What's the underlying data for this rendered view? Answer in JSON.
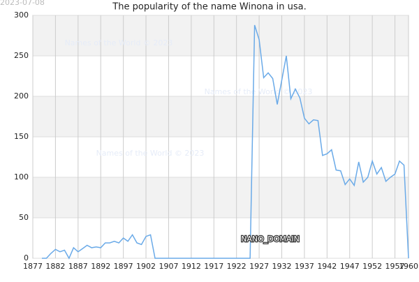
{
  "chart_data": {
    "type": "line",
    "title": "The popularity of the name Winona in usa.",
    "date_label": "2023-07-08",
    "watermarks": [
      "Names of the World © 2023",
      "Names of the World © 2023",
      "Names of the World © 2023"
    ],
    "annotation": "NANO_DOMAIN",
    "x": [
      1879,
      1880,
      1881,
      1882,
      1883,
      1884,
      1885,
      1886,
      1887,
      1888,
      1889,
      1890,
      1891,
      1892,
      1893,
      1894,
      1895,
      1896,
      1897,
      1898,
      1899,
      1900,
      1901,
      1902,
      1903,
      1904,
      1905,
      1906,
      1907,
      1908,
      1909,
      1910,
      1911,
      1912,
      1913,
      1914,
      1915,
      1916,
      1917,
      1918,
      1919,
      1920,
      1921,
      1922,
      1923,
      1924,
      1925,
      1926,
      1927,
      1928,
      1929,
      1930,
      1931,
      1932,
      1933,
      1934,
      1935,
      1936,
      1937,
      1938,
      1939,
      1940,
      1941,
      1942,
      1943,
      1944,
      1945,
      1946,
      1947,
      1948,
      1949,
      1950,
      1951,
      1952,
      1953,
      1954,
      1955,
      1956,
      1957,
      1958,
      1959,
      1960
    ],
    "series": [
      {
        "color": "#6aaae8",
        "values": [
          0,
          0,
          6,
          11,
          8,
          10,
          0,
          13,
          8,
          12,
          16,
          13,
          14,
          13,
          19,
          19,
          21,
          19,
          25,
          21,
          29,
          19,
          17,
          27,
          29,
          0,
          0,
          0,
          0,
          0,
          0,
          0,
          0,
          0,
          0,
          0,
          0,
          0,
          0,
          0,
          0,
          0,
          0,
          0,
          0,
          0,
          0,
          288,
          270,
          223,
          229,
          222,
          190,
          220,
          250,
          197,
          209,
          198,
          173,
          166,
          171,
          170,
          127,
          129,
          134,
          109,
          108,
          91,
          98,
          90,
          119,
          94,
          100,
          120,
          104,
          112,
          95,
          100,
          104,
          120,
          115,
          0
        ]
      }
    ],
    "xlim": [
      1877,
      1960
    ],
    "xticks": [
      1877,
      1882,
      1887,
      1892,
      1897,
      1902,
      1907,
      1912,
      1917,
      1922,
      1927,
      1932,
      1937,
      1942,
      1947,
      1952,
      1957,
      1960
    ],
    "ylim": [
      0,
      300
    ],
    "yticks": [
      0,
      50,
      100,
      150,
      200,
      250,
      300
    ],
    "grid": true
  }
}
